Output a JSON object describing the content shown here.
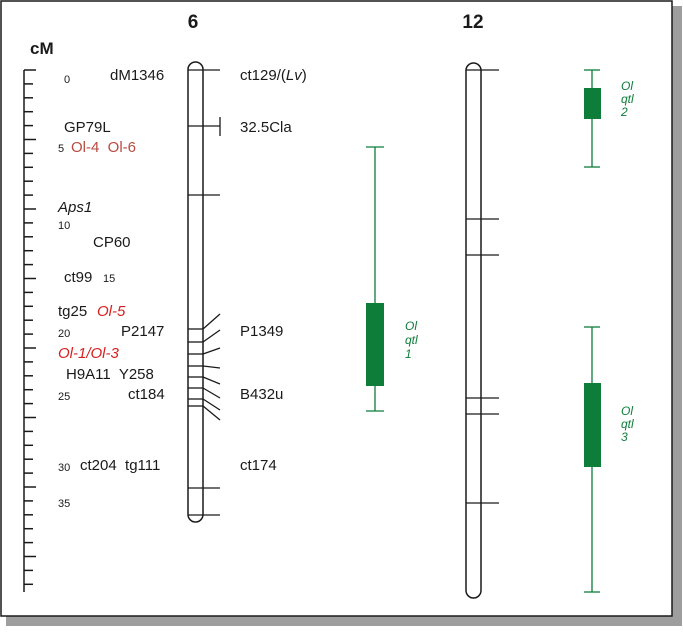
{
  "colors": {
    "frame": "#1a1a1a",
    "shadow": "#9e9e9e",
    "qtl": "#0e7d3a",
    "resistance": "#d62020",
    "resistance_alt": "#b84a40",
    "text": "#1a1a1a"
  },
  "scale": {
    "unit_label": "cM",
    "ticks": [
      {
        "cm": 0,
        "label": "0"
      },
      {
        "cm": 5,
        "label": "5"
      },
      {
        "cm": 10,
        "label": "10"
      },
      {
        "cm": 15,
        "label": "15"
      },
      {
        "cm": 20,
        "label": "20"
      },
      {
        "cm": 25,
        "label": "25"
      },
      {
        "cm": 30,
        "label": "30"
      },
      {
        "cm": 35,
        "label": "35"
      }
    ]
  },
  "chromosomes": [
    {
      "id": "chr6",
      "name": "6",
      "markers_left": [
        {
          "label": "dM1346",
          "cm": 0
        },
        {
          "label": "GP79L",
          "cm": 4
        },
        {
          "label": "Aps1",
          "cm": 9,
          "italic": true
        },
        {
          "label": "CP60",
          "cm": 11.5
        },
        {
          "label": "ct99",
          "cm": 15
        },
        {
          "label": "P2147",
          "cm": 20
        },
        {
          "label": "H9A11  Y258",
          "cm": 23
        },
        {
          "label": "ct184",
          "cm": 24.5
        },
        {
          "label": "ct204  tg111",
          "cm": 29.8
        }
      ],
      "markers_right": [
        {
          "label": "ct129/(Lv)",
          "cm": 0
        },
        {
          "label": "32.5Cla",
          "cm": 4
        },
        {
          "label": "P1349",
          "cm": 20
        },
        {
          "label": "B432u",
          "cm": 24.5
        },
        {
          "label": "ct174",
          "cm": 29.8
        }
      ],
      "genes": [
        {
          "label": "Ol-4  Ol-6",
          "cm": 5.5,
          "style": "alt"
        },
        {
          "label": "Ol-5",
          "cm": 18.3,
          "style": "italic",
          "prefix": "tg25"
        },
        {
          "label": "Ol-1/Ol-3",
          "cm": 21.5,
          "style": "italic"
        }
      ]
    },
    {
      "id": "chr12",
      "name": "12"
    }
  ],
  "qtls": [
    {
      "line1": "Ol",
      "line2": "qtl",
      "line3": "1",
      "chromosome": "6"
    },
    {
      "line1": "Ol",
      "line2": "qtl",
      "line3": "2",
      "chromosome": "12"
    },
    {
      "line1": "Ol",
      "line2": "qtl",
      "line3": "3",
      "chromosome": "12"
    }
  ]
}
